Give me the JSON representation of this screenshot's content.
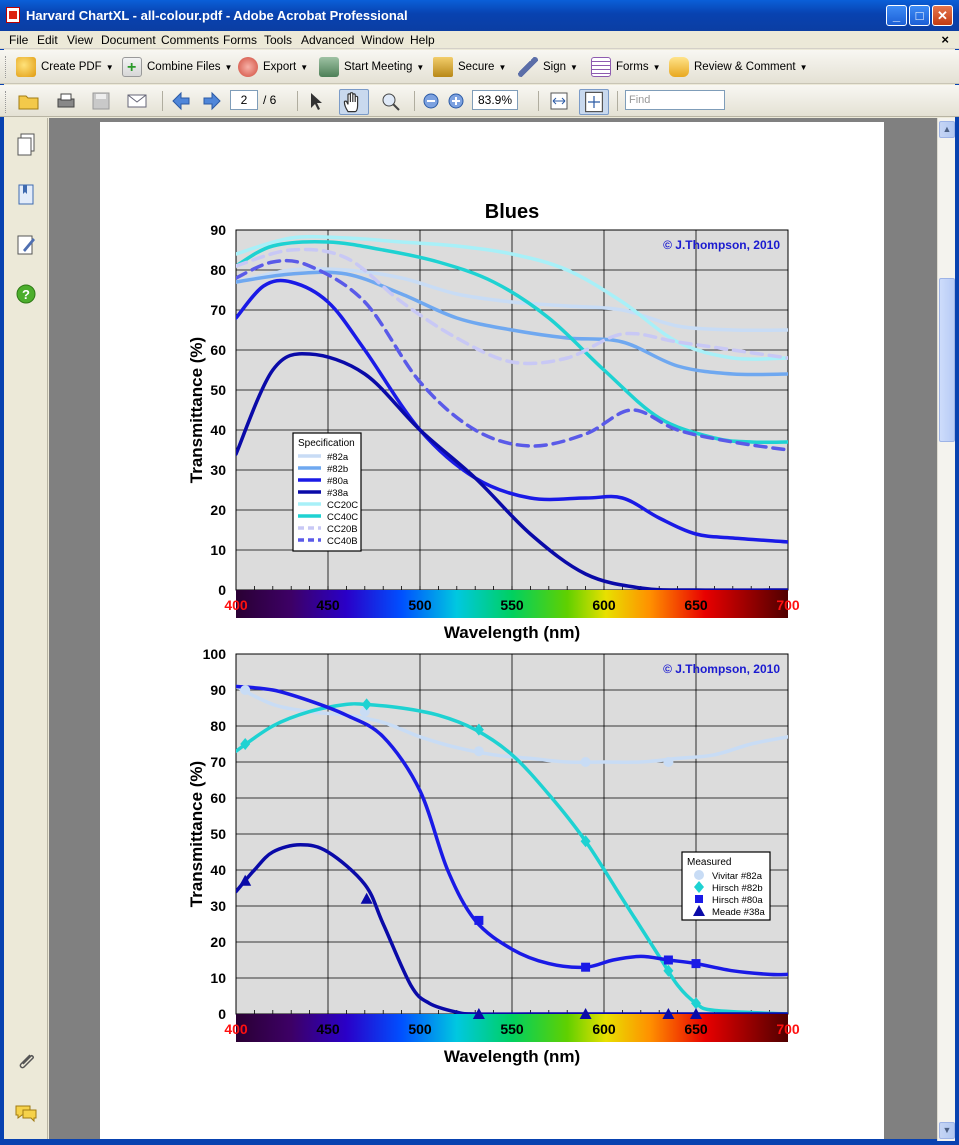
{
  "window": {
    "title": "Harvard ChartXL - all-colour.pdf - Adobe Acrobat Professional"
  },
  "menu": [
    "File",
    "Edit",
    "View",
    "Document",
    "Comments",
    "Forms",
    "Tools",
    "Advanced",
    "Window",
    "Help"
  ],
  "toolbar": {
    "create_pdf": "Create PDF",
    "combine_files": "Combine Files",
    "export": "Export",
    "start_meeting": "Start Meeting",
    "secure": "Secure",
    "sign": "Sign",
    "forms": "Forms",
    "review_comment": "Review & Comment"
  },
  "nav": {
    "page_current": "2",
    "page_total": "/ 6",
    "zoom": "83.9%",
    "find_placeholder": "Find"
  },
  "chart_data": [
    {
      "type": "line",
      "title": "Blues",
      "copyright": "© J.Thompson, 2010",
      "xlabel": "Wavelength (nm)",
      "ylabel": "Transmittance (%)",
      "xlim": [
        400,
        700
      ],
      "ylim": [
        0,
        90
      ],
      "xticks": [
        "400",
        "450",
        "500",
        "550",
        "600",
        "650",
        "700"
      ],
      "yticks": [
        "0",
        "10",
        "20",
        "30",
        "40",
        "50",
        "60",
        "70",
        "80",
        "90"
      ],
      "grid": true,
      "legend_title": "Specification",
      "legend_position": "lower-left",
      "series": [
        {
          "name": "#82a",
          "color": "#c8dcf5",
          "dash": false,
          "x": [
            400,
            430,
            460,
            490,
            520,
            550,
            580,
            610,
            640,
            670,
            700
          ],
          "y": [
            77,
            80,
            80,
            78,
            74,
            72,
            71,
            70,
            66,
            65,
            65
          ]
        },
        {
          "name": "#82b",
          "color": "#6fa8f0",
          "dash": false,
          "x": [
            400,
            430,
            460,
            490,
            520,
            550,
            580,
            610,
            640,
            670,
            700
          ],
          "y": [
            77,
            79,
            79,
            74,
            68,
            65,
            63,
            62,
            56,
            54,
            54
          ]
        },
        {
          "name": "#80a",
          "color": "#1a1ae6",
          "dash": false,
          "x": [
            400,
            415,
            430,
            450,
            470,
            500,
            530,
            560,
            590,
            610,
            630,
            650,
            670,
            700
          ],
          "y": [
            68,
            76,
            77,
            72,
            60,
            40,
            28,
            23,
            23,
            23,
            18,
            14,
            13,
            12
          ]
        },
        {
          "name": "#38a",
          "color": "#0a0aa8",
          "dash": false,
          "x": [
            400,
            420,
            440,
            470,
            500,
            530,
            560,
            590,
            620,
            650,
            700
          ],
          "y": [
            34,
            55,
            59,
            54,
            40,
            28,
            14,
            4,
            0.5,
            0,
            0
          ]
        },
        {
          "name": "CC20C",
          "color": "#a8f0f8",
          "dash": false,
          "x": [
            400,
            430,
            460,
            490,
            520,
            550,
            580,
            610,
            640,
            670,
            700
          ],
          "y": [
            84,
            88,
            88,
            87,
            86,
            84,
            80,
            72,
            62,
            58,
            58
          ]
        },
        {
          "name": "CC40C",
          "color": "#1ed2d2",
          "dash": false,
          "x": [
            400,
            420,
            450,
            480,
            510,
            540,
            570,
            600,
            630,
            660,
            680,
            700
          ],
          "y": [
            81,
            86,
            87,
            85,
            82,
            77,
            68,
            55,
            43,
            38,
            37,
            37
          ]
        },
        {
          "name": "CC20B",
          "color": "#c8c8f5",
          "dash": true,
          "x": [
            400,
            430,
            460,
            490,
            520,
            550,
            580,
            610,
            640,
            670,
            700
          ],
          "y": [
            81,
            85,
            83,
            72,
            63,
            57,
            58,
            64,
            62,
            60,
            58
          ]
        },
        {
          "name": "CC40B",
          "color": "#5a5ae8",
          "dash": true,
          "x": [
            400,
            420,
            440,
            470,
            500,
            530,
            560,
            590,
            615,
            640,
            670,
            700
          ],
          "y": [
            78,
            82,
            81,
            72,
            52,
            40,
            36,
            39,
            45,
            40,
            37,
            35
          ]
        }
      ]
    },
    {
      "type": "line",
      "title": "",
      "copyright": "© J.Thompson, 2010",
      "xlabel": "Wavelength (nm)",
      "ylabel": "Transmittance (%)",
      "xlim": [
        400,
        700
      ],
      "ylim": [
        0,
        100
      ],
      "xticks": [
        "400",
        "450",
        "500",
        "550",
        "600",
        "650",
        "700"
      ],
      "yticks": [
        "0",
        "10",
        "20",
        "30",
        "40",
        "50",
        "60",
        "70",
        "80",
        "90",
        "100"
      ],
      "grid": true,
      "legend_title": "Measured",
      "legend_position": "middle-right",
      "series": [
        {
          "name": "Vivitar #82a",
          "color": "#c8dcf5",
          "marker": "circle",
          "x": [
            400,
            420,
            440,
            460,
            480,
            500,
            520,
            540,
            560,
            580,
            600,
            620,
            640,
            660,
            680,
            700
          ],
          "y": [
            91,
            86,
            84,
            83,
            81,
            77,
            74,
            72,
            71,
            70,
            70,
            70,
            71,
            72,
            75,
            77
          ],
          "markers_x": [
            405,
            470,
            532,
            590,
            635
          ],
          "markers_y": [
            90,
            84,
            73,
            70,
            70
          ]
        },
        {
          "name": "Hirsch #82b",
          "color": "#1ed2d2",
          "marker": "diamond",
          "x": [
            400,
            420,
            440,
            460,
            470,
            490,
            510,
            530,
            550,
            570,
            590,
            610,
            630,
            640,
            650,
            660,
            700
          ],
          "y": [
            73,
            80,
            84,
            86,
            86,
            85,
            83,
            79,
            72,
            61,
            48,
            32,
            16,
            8,
            3,
            1,
            0
          ],
          "markers_x": [
            405,
            471,
            532,
            590,
            635,
            650
          ],
          "markers_y": [
            75,
            86,
            79,
            48,
            12,
            3
          ]
        },
        {
          "name": "Hirsch #80a",
          "color": "#1a1ae6",
          "marker": "square",
          "x": [
            400,
            420,
            440,
            460,
            480,
            500,
            515,
            530,
            550,
            570,
            590,
            605,
            620,
            635,
            650,
            670,
            690,
            700
          ],
          "y": [
            91,
            90,
            87,
            83,
            77,
            62,
            40,
            26,
            18,
            14,
            13,
            15,
            16,
            15,
            14,
            12,
            11,
            11
          ],
          "markers_x": [
            532,
            590,
            635,
            650
          ],
          "markers_y": [
            26,
            13,
            15,
            14
          ]
        },
        {
          "name": "Meade #38a",
          "color": "#0a0aa8",
          "marker": "triangle",
          "x": [
            400,
            410,
            420,
            435,
            450,
            470,
            480,
            495,
            505,
            520,
            530,
            560,
            600,
            650,
            700
          ],
          "y": [
            34,
            40,
            45,
            47,
            45,
            36,
            25,
            8,
            3,
            0.5,
            0,
            0,
            0,
            0,
            0
          ],
          "markers_x": [
            405,
            471,
            532,
            590,
            635,
            650
          ],
          "markers_y": [
            37,
            32,
            0,
            0,
            0,
            0
          ]
        }
      ]
    }
  ]
}
